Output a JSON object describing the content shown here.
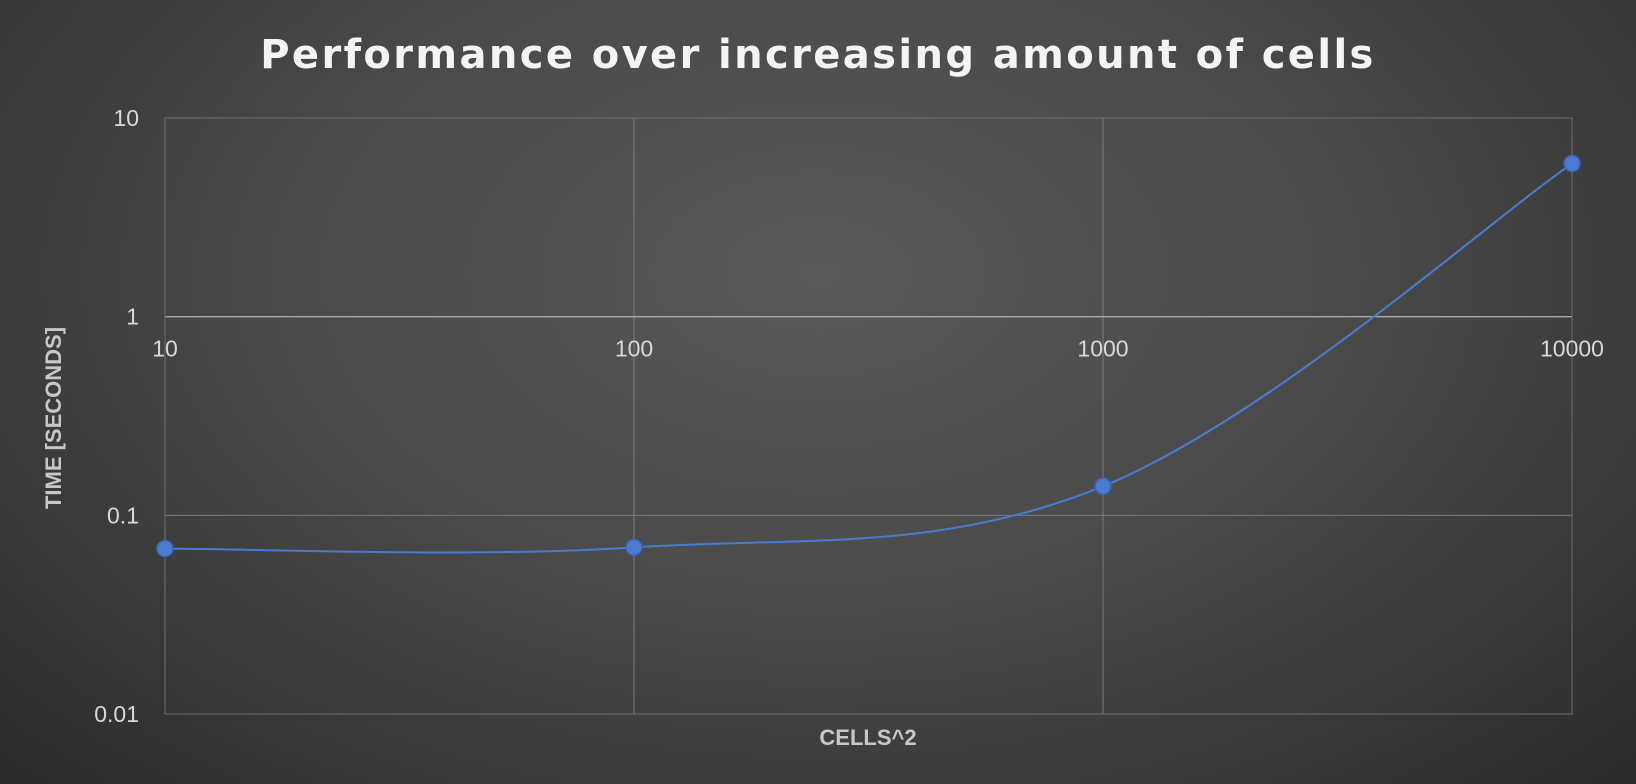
{
  "chart_data": {
    "type": "line",
    "title": "Performance over increasing amount of cells",
    "xlabel": "CELLS^2",
    "ylabel": "TIME [SECONDS]",
    "x_scale": "log",
    "y_scale": "log",
    "xlim": [
      10,
      10000
    ],
    "ylim": [
      0.01,
      10
    ],
    "x_ticks": [
      "10",
      "100",
      "1000",
      "10000"
    ],
    "y_ticks": [
      "10",
      "1",
      "0.1",
      "0.01"
    ],
    "x_tick_values": [
      10,
      100,
      1000,
      10000
    ],
    "y_tick_values": [
      10,
      1,
      0.1,
      0.01
    ],
    "grid": true,
    "smooth": true,
    "series": [
      {
        "color": "#4a7bd0",
        "x": [
          10,
          100,
          1000,
          10000
        ],
        "y": [
          0.068,
          0.069,
          0.14,
          5.9
        ]
      }
    ]
  }
}
